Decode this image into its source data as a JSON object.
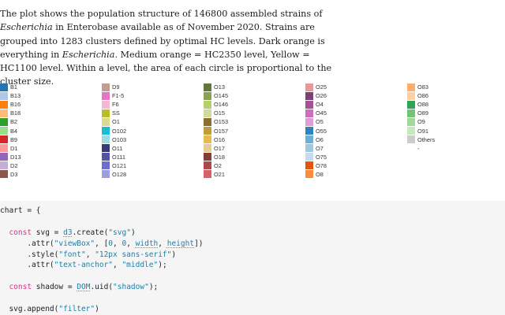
{
  "description": {
    "t1": "The plot shows the population structure of 146800 assembled strains of ",
    "t2": "Escherichia",
    "t3": " in Enterobase available as of November 2020. Strains are grouped into 1283 clusters defined by optimal HC levels. Dark orange is everything in ",
    "t4": "Escherichia",
    "t5": ". Medium orange = HC2350 level, Yellow = HC1100 level. Within a level, the area of each circle is proportional to the cluster size."
  },
  "legend": {
    "columns": [
      [
        {
          "label": "B1",
          "color": "#1f77b4"
        },
        {
          "label": "B13",
          "color": "#aec7e8"
        },
        {
          "label": "B16",
          "color": "#ff7f0e"
        },
        {
          "label": "B18",
          "color": "#ffbb78"
        },
        {
          "label": "B2",
          "color": "#2ca02c"
        },
        {
          "label": "B4",
          "color": "#98df8a"
        },
        {
          "label": "B9",
          "color": "#d62728"
        },
        {
          "label": "D1",
          "color": "#ff9896"
        },
        {
          "label": "D13",
          "color": "#9467bd"
        },
        {
          "label": "D2",
          "color": "#c5b0d5"
        },
        {
          "label": "D3",
          "color": "#8c564b"
        }
      ],
      [
        {
          "label": "D9",
          "color": "#c49c94"
        },
        {
          "label": "F1-5",
          "color": "#e377c2"
        },
        {
          "label": "F6",
          "color": "#f7b6d2"
        },
        {
          "label": "SS",
          "color": "#bcbd22"
        },
        {
          "label": "O1",
          "color": "#dbdb8d"
        },
        {
          "label": "O102",
          "color": "#17becf"
        },
        {
          "label": "O103",
          "color": "#9edae5"
        },
        {
          "label": "O11",
          "color": "#393b79"
        },
        {
          "label": "O111",
          "color": "#5254a3"
        },
        {
          "label": "O121",
          "color": "#6b6ecf"
        },
        {
          "label": "O128",
          "color": "#9c9ede"
        }
      ],
      [
        {
          "label": "O13",
          "color": "#637939"
        },
        {
          "label": "O145",
          "color": "#8ca252"
        },
        {
          "label": "O146",
          "color": "#b5cf6b"
        },
        {
          "label": "O15",
          "color": "#cedb9c"
        },
        {
          "label": "O153",
          "color": "#8c6d31"
        },
        {
          "label": "O157",
          "color": "#bd9e39"
        },
        {
          "label": "O16",
          "color": "#e7ba52"
        },
        {
          "label": "O17",
          "color": "#e7cb94"
        },
        {
          "label": "O18",
          "color": "#843c39"
        },
        {
          "label": "O2",
          "color": "#ad494a"
        },
        {
          "label": "O21",
          "color": "#d6616b"
        }
      ],
      [
        {
          "label": "O25",
          "color": "#e7969c"
        },
        {
          "label": "O26",
          "color": "#7b4173"
        },
        {
          "label": "O4",
          "color": "#a55194"
        },
        {
          "label": "O45",
          "color": "#ce6dbd"
        },
        {
          "label": "O5",
          "color": "#de9ed6"
        },
        {
          "label": "O55",
          "color": "#3182bd"
        },
        {
          "label": "O6",
          "color": "#6baed6"
        },
        {
          "label": "O7",
          "color": "#9ecae1"
        },
        {
          "label": "O75",
          "color": "#c6dbef"
        },
        {
          "label": "O78",
          "color": "#e6550d"
        },
        {
          "label": "O8",
          "color": "#fd8d3c"
        }
      ],
      [
        {
          "label": "O83",
          "color": "#fdae6b"
        },
        {
          "label": "O86",
          "color": "#fdd0a2"
        },
        {
          "label": "O88",
          "color": "#31a354"
        },
        {
          "label": "O89",
          "color": "#74c476"
        },
        {
          "label": "O9",
          "color": "#a1d99b"
        },
        {
          "label": "O91",
          "color": "#c7e9c0"
        },
        {
          "label": "Others",
          "color": "#cccccc"
        },
        {
          "label": "-",
          "color": ""
        }
      ]
    ]
  },
  "code": [
    "chart = {",
    "",
    "  const svg = d3.create(\"svg\")",
    "      .attr(\"viewBox\", [0, 0, width, height])",
    "      .style(\"font\", \"12px sans-serif\")",
    "      .attr(\"text-anchor\", \"middle\");",
    "",
    "  const shadow = DOM.uid(\"shadow\");",
    "",
    "  svg.append(\"filter\")"
  ]
}
